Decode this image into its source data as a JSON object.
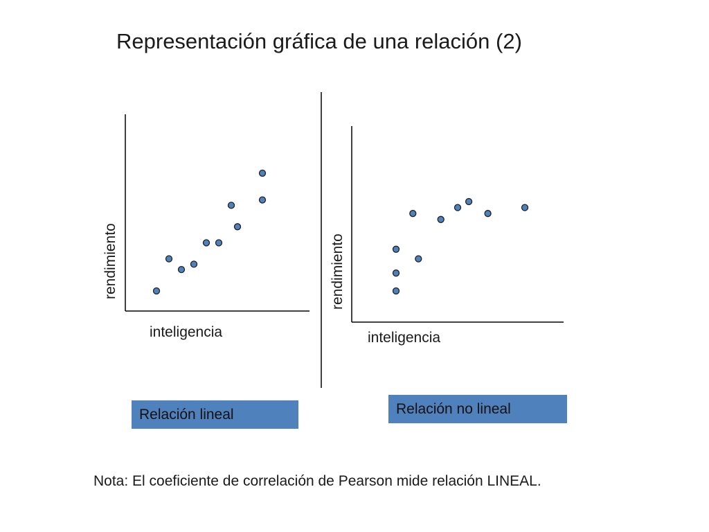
{
  "title": "Representación gráfica de una relación (2)",
  "note": "Nota: El coeficiente de correlación de Pearson mide relación LINEAL.",
  "colors": {
    "point_fill": "#4f81bd",
    "point_stroke": "#1f1f1f",
    "tag_fill": "#4f81bd",
    "axis": "#000000"
  },
  "chart_data": [
    {
      "type": "scatter",
      "title": "",
      "xlabel": "inteligencia",
      "ylabel": "rendimiento",
      "tag": "Relación lineal",
      "grid": false,
      "ticks": false,
      "points": [
        {
          "x": 1,
          "y": 1
        },
        {
          "x": 2,
          "y": 4
        },
        {
          "x": 3,
          "y": 3
        },
        {
          "x": 4,
          "y": 3.5
        },
        {
          "x": 5,
          "y": 5.5
        },
        {
          "x": 6,
          "y": 5.5
        },
        {
          "x": 7,
          "y": 9
        },
        {
          "x": 7.5,
          "y": 7
        },
        {
          "x": 9.5,
          "y": 9.5
        },
        {
          "x": 9.5,
          "y": 12
        }
      ]
    },
    {
      "type": "scatter",
      "title": "",
      "xlabel": "inteligencia",
      "ylabel": "rendimiento",
      "tag": "Relación no lineal",
      "grid": false,
      "ticks": false,
      "points": [
        {
          "x": 1,
          "y": 1
        },
        {
          "x": 1,
          "y": 2.5
        },
        {
          "x": 1,
          "y": 4.5
        },
        {
          "x": 2.5,
          "y": 7.5
        },
        {
          "x": 3,
          "y": 3.7
        },
        {
          "x": 5,
          "y": 7
        },
        {
          "x": 6.5,
          "y": 8
        },
        {
          "x": 7.5,
          "y": 8.5
        },
        {
          "x": 9.2,
          "y": 7.5
        },
        {
          "x": 12.5,
          "y": 8
        }
      ]
    }
  ]
}
